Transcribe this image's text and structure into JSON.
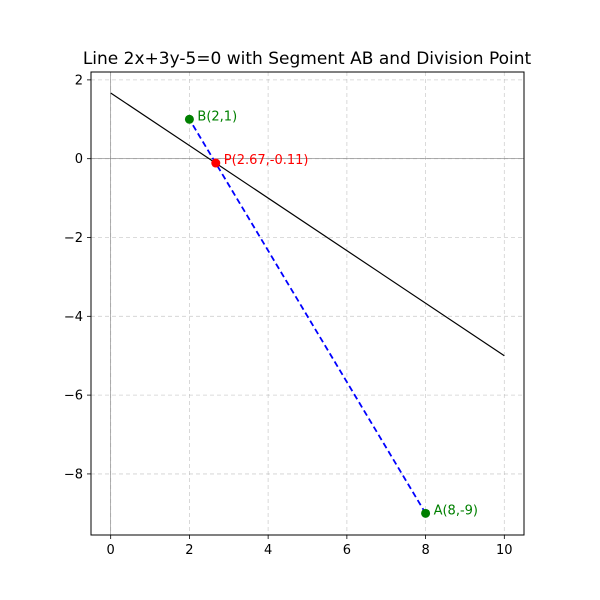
{
  "chart_data": {
    "type": "line",
    "title": "Line 2x+3y-5=0 with Segment AB and Division Point",
    "xlabel": "",
    "ylabel": "",
    "xlim": [
      -0.5,
      10.5
    ],
    "ylim": [
      -9.55,
      2.2
    ],
    "xticks": [
      0,
      2,
      4,
      6,
      8,
      10
    ],
    "yticks": [
      2,
      0,
      -2,
      -4,
      -6,
      -8
    ],
    "xtick_labels": [
      "0",
      "2",
      "4",
      "6",
      "8",
      "10"
    ],
    "ytick_labels": [
      "2",
      "0",
      "−2",
      "−4",
      "−6",
      "−8"
    ],
    "grid": true,
    "series": [
      {
        "kind": "line",
        "color": "#000000",
        "style": "solid",
        "x": [
          0,
          10
        ],
        "y": [
          1.6667,
          -5.0
        ]
      },
      {
        "kind": "segment",
        "color": "#0000ff",
        "style": "dashed",
        "x": [
          8,
          2
        ],
        "y": [
          -9,
          1
        ]
      }
    ],
    "points": [
      {
        "label": "A(8,-9)",
        "x": 8,
        "y": -9,
        "color": "#008000"
      },
      {
        "label": "B(2,1)",
        "x": 2,
        "y": 1,
        "color": "#008000"
      },
      {
        "label": "P(2.67,-0.11)",
        "x": 2.67,
        "y": -0.11,
        "color": "#ff0000"
      }
    ],
    "zero_line_color": "#808080"
  }
}
